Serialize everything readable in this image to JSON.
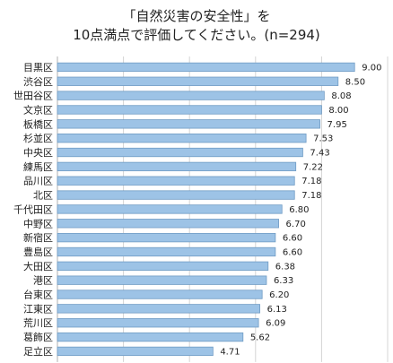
{
  "chart_data": {
    "type": "bar",
    "orientation": "horizontal",
    "title_line1": "「自然災害の安全性」を",
    "title_line2": "10点満点で評価してください。(n=294)",
    "xlabel": "",
    "ylabel": "",
    "xlim": [
      0,
      10
    ],
    "grid": true,
    "bar_color": "#9dc3e6",
    "bar_border_color": "#6f9bc4",
    "categories": [
      "目黒区",
      "渋谷区",
      "世田谷区",
      "文京区",
      "板橋区",
      "杉並区",
      "中央区",
      "練馬区",
      "品川区",
      "北区",
      "千代田区",
      "中野区",
      "新宿区",
      "豊島区",
      "大田区",
      "港区",
      "台東区",
      "江東区",
      "荒川区",
      "葛飾区",
      "足立区"
    ],
    "value_labels": [
      "9.00",
      "8.50",
      "8.08",
      "8.00",
      "7.95",
      "7.53",
      "7.43",
      "7.22",
      "7.18",
      "7.18",
      "6.80",
      "6.70",
      "6.60",
      "6.60",
      "6.38",
      "6.33",
      "6.20",
      "6.13",
      "6.09",
      "5.62",
      "4.71"
    ],
    "values": [
      9.0,
      8.5,
      8.08,
      8.0,
      7.95,
      7.53,
      7.43,
      7.22,
      7.18,
      7.18,
      6.8,
      6.7,
      6.6,
      6.6,
      6.38,
      6.33,
      6.2,
      6.13,
      6.09,
      5.62,
      4.71
    ]
  }
}
